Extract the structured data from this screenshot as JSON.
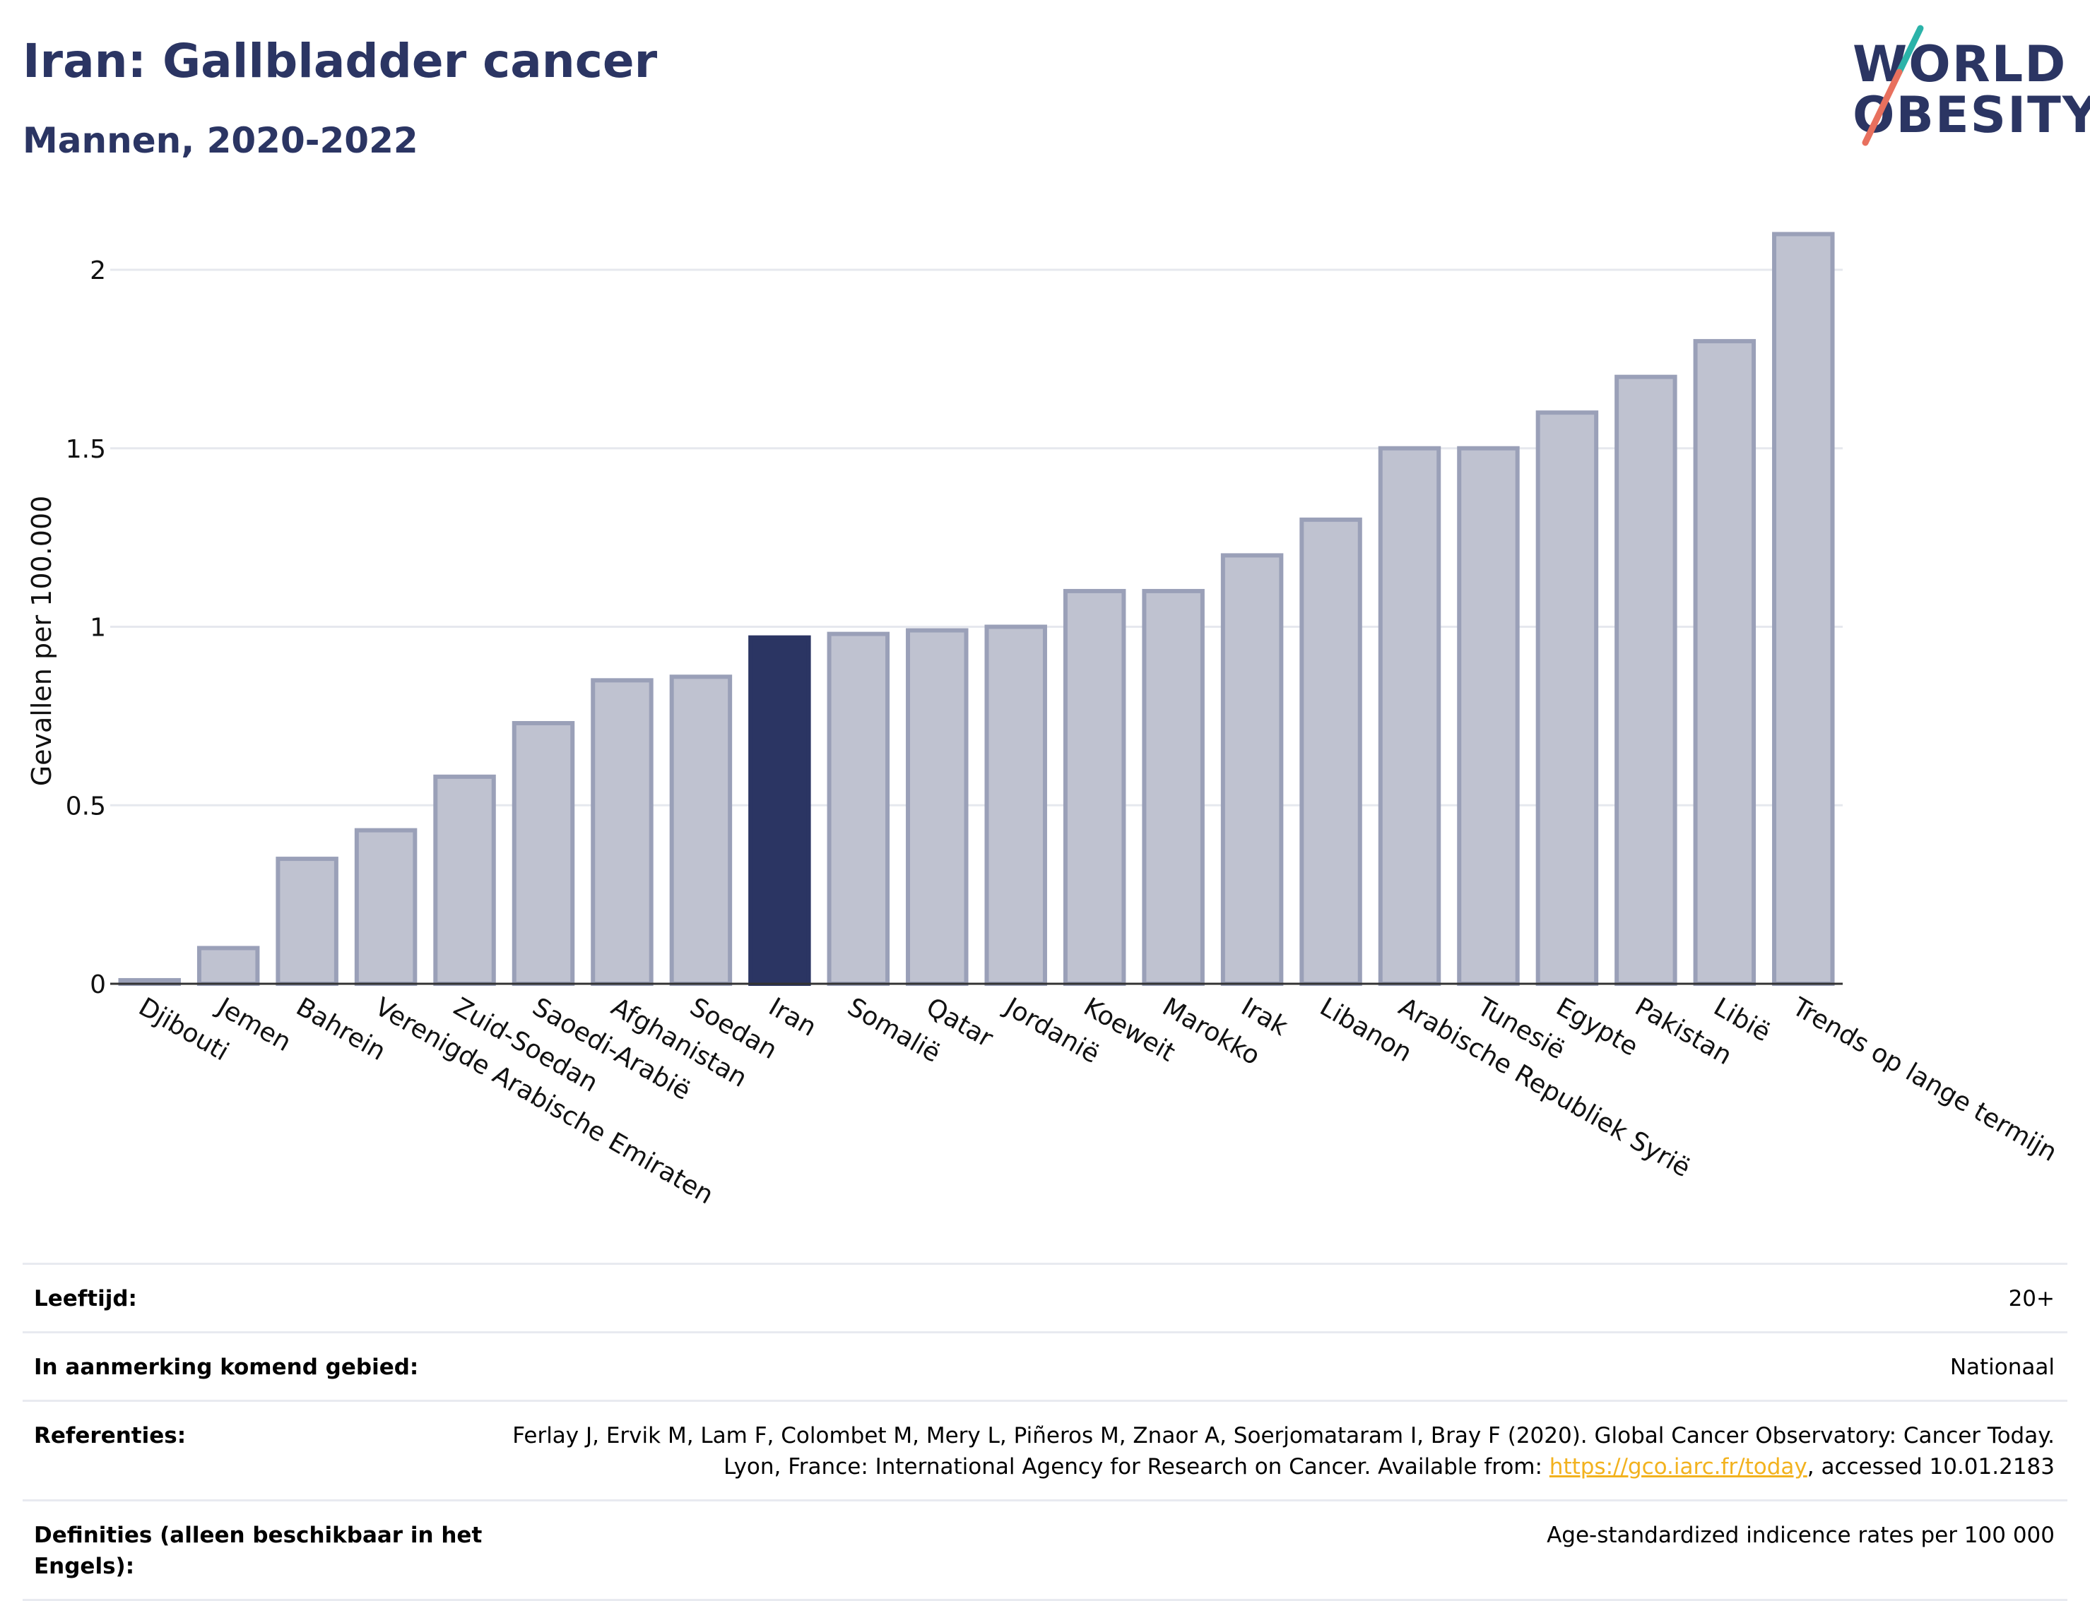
{
  "header": {
    "title": "Iran: Gallbladder cancer",
    "subtitle": "Mannen, 2020-2022"
  },
  "logo": {
    "line1": "WORLD",
    "line2": "OBESITY",
    "colors": {
      "text": "#2b3563",
      "slash_top": "#2bb3a9",
      "slash_bottom": "#e8705e"
    }
  },
  "chart_data": {
    "type": "bar",
    "ylabel": "Gevallen per 100.000",
    "xlabel": "",
    "ylim": [
      0,
      2.2
    ],
    "yticks": [
      0,
      0.5,
      1,
      1.5,
      2
    ],
    "ytick_labels": [
      "0",
      "0.5",
      "1",
      "1.5",
      "2"
    ],
    "grid": true,
    "highlight": "Iran",
    "colors": {
      "bar": "#bfc2d0",
      "bar_edge": "#9aa0b8",
      "highlight": "#2b3563",
      "grid": "#e6e8ee",
      "axis": "#333333"
    },
    "categories": [
      "Djibouti",
      "Jemen",
      "Bahrein",
      "Verenigde Arabische Emiraten",
      "Zuid-Soedan",
      "Saoedi-Arabië",
      "Afghanistan",
      "Soedan",
      "Iran",
      "Somalië",
      "Qatar",
      "Jordanië",
      "Koeweit",
      "Marokko",
      "Irak",
      "Libanon",
      "Arabische Republiek Syrië",
      "Tunesië",
      "Egypte",
      "Pakistan",
      "Libië",
      "Trends op lange termijn"
    ],
    "values": [
      0.01,
      0.1,
      0.35,
      0.43,
      0.58,
      0.73,
      0.85,
      0.86,
      0.97,
      0.98,
      0.99,
      1.0,
      1.1,
      1.1,
      1.2,
      1.3,
      1.5,
      1.5,
      1.6,
      1.7,
      1.8,
      2.1
    ]
  },
  "info": {
    "age_label": "Leeftijd:",
    "age_value": "20+",
    "area_label": "In aanmerking komend gebied:",
    "area_value": "Nationaal",
    "ref_label": "Referenties:",
    "ref_text_1": "Ferlay J, Ervik M, Lam F, Colombet M, Mery L, Piñeros M, Znaor A, Soerjomataram I, Bray F (2020). Global Cancer Observatory: Cancer Today. Lyon, France: International Agency for Research on Cancer. Available from: ",
    "ref_link": "https://gco.iarc.fr/today",
    "ref_text_2": ", accessed 10.01.2183",
    "def_label": "Definities (alleen beschikbaar in het Engels):",
    "def_value": "Age-standardized indicence rates per 100 000"
  }
}
